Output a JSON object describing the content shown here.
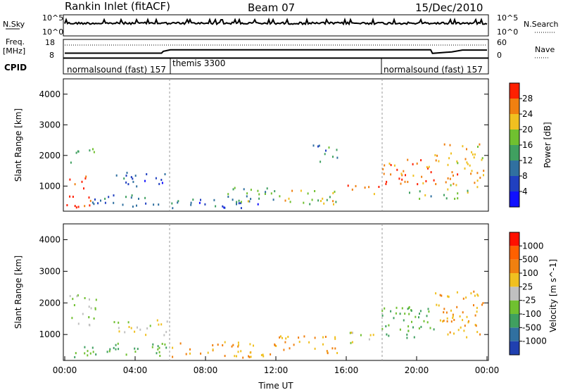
{
  "header": {
    "title": "Rankin Inlet (fitACF)",
    "beam": "Beam 07",
    "date": "15/Dec/2010"
  },
  "top_panels": {
    "nsky_label": "N.Sky",
    "nsky_ticks": [
      "10^5",
      "10^0"
    ],
    "nsearch_label": "N.Search",
    "nsearch_ticks": [
      "10^5",
      "10^0"
    ],
    "freq_label": "Freq.",
    "freq_unit": "[MHz]",
    "freq_ticks": [
      "18",
      "8"
    ],
    "nave_label": "Nave",
    "nave_ticks": [
      "60",
      "0"
    ],
    "cpid_label": "CPID",
    "cpid_segments": [
      {
        "label": "normalsound (fast) 157",
        "start_hour": 0,
        "end_hour": 6
      },
      {
        "label": "themis 3300",
        "start_hour": 6,
        "end_hour": 18
      },
      {
        "label": "normalsound (fast) 157",
        "start_hour": 18,
        "end_hour": 24
      }
    ],
    "freq_series": [
      {
        "hour": 0.0,
        "mhz": 10.5
      },
      {
        "hour": 5.5,
        "mhz": 10.5
      },
      {
        "hour": 5.6,
        "mhz": 11.5
      },
      {
        "hour": 6.0,
        "mhz": 12.3
      },
      {
        "hour": 20.8,
        "mhz": 12.3
      },
      {
        "hour": 20.9,
        "mhz": 10.4
      },
      {
        "hour": 22.0,
        "mhz": 11.2
      },
      {
        "hour": 22.6,
        "mhz": 12.2
      },
      {
        "hour": 24.0,
        "mhz": 12.2
      }
    ]
  },
  "chart_data": [
    {
      "type": "heatmap",
      "panel": "power",
      "xlabel": "",
      "ylabel": "Slant Range [km]",
      "xlim": [
        0,
        24
      ],
      "ylim": [
        180,
        4500
      ],
      "yticks": [
        "1000",
        "2000",
        "3000",
        "4000"
      ],
      "colorbar": {
        "label": "Power [dB]",
        "ticks": [
          "4",
          "8",
          "12",
          "16",
          "20",
          "24",
          "28"
        ],
        "colors": [
          "#1010ff",
          "#2040c0",
          "#3070a0",
          "#40a060",
          "#70c030",
          "#f0c020",
          "#f08010",
          "#ff2000"
        ]
      },
      "regions": [
        {
          "t0": 0.0,
          "t1": 1.5,
          "r0": 300,
          "r1": 700,
          "value": 28
        },
        {
          "t0": 0.2,
          "t1": 1.2,
          "r0": 900,
          "r1": 1400,
          "value": 26
        },
        {
          "t0": 0.3,
          "t1": 1.8,
          "r0": 1800,
          "r1": 2300,
          "value": 14
        },
        {
          "t0": 1.5,
          "t1": 6.0,
          "r0": 350,
          "r1": 800,
          "value": 10
        },
        {
          "t0": 2.5,
          "t1": 5.8,
          "r0": 1000,
          "r1": 1500,
          "value": 8
        },
        {
          "t0": 6.0,
          "t1": 12.0,
          "r0": 300,
          "r1": 600,
          "value": 8
        },
        {
          "t0": 9.0,
          "t1": 12.0,
          "r0": 500,
          "r1": 1000,
          "value": 16
        },
        {
          "t0": 12.0,
          "t1": 15.5,
          "r0": 400,
          "r1": 900,
          "value": 20
        },
        {
          "t0": 14.0,
          "t1": 15.5,
          "r0": 1800,
          "r1": 2400,
          "value": 12
        },
        {
          "t0": 16.0,
          "t1": 18.0,
          "r0": 700,
          "r1": 1100,
          "value": 28
        },
        {
          "t0": 18.0,
          "t1": 21.0,
          "r0": 1000,
          "r1": 1900,
          "value": 28
        },
        {
          "t0": 21.0,
          "t1": 23.8,
          "r0": 900,
          "r1": 2400,
          "value": 24
        },
        {
          "t0": 19.0,
          "t1": 23.0,
          "r0": 600,
          "r1": 900,
          "value": 16
        }
      ]
    },
    {
      "type": "heatmap",
      "panel": "velocity",
      "xlabel": "Time UT",
      "ylabel": "Slant Range [km]",
      "xlim": [
        0,
        24
      ],
      "ylim": [
        180,
        4500
      ],
      "xticks": [
        "00:00",
        "04:00",
        "08:00",
        "12:00",
        "16:00",
        "20:00",
        "00:00"
      ],
      "yticks": [
        "1000",
        "2000",
        "3000",
        "4000"
      ],
      "colorbar": {
        "label": "Velocity [m s^-1]",
        "ticks": [
          "1000",
          "500",
          "100",
          "25",
          "-25",
          "-100",
          "-500",
          "-1000"
        ],
        "colors": [
          "#2040b0",
          "#3070a0",
          "#40a060",
          "#70c030",
          "#c0c0c0",
          "#f0c020",
          "#f08010",
          "#ff6000",
          "#ff1000"
        ]
      },
      "regions": [
        {
          "t0": 0.0,
          "t1": 1.5,
          "r0": 300,
          "r1": 700,
          "value": 100
        },
        {
          "t0": 0.2,
          "t1": 1.8,
          "r0": 1300,
          "r1": 2300,
          "value": 25
        },
        {
          "t0": 1.5,
          "t1": 6.0,
          "r0": 350,
          "r1": 800,
          "value": 100
        },
        {
          "t0": 2.5,
          "t1": 5.8,
          "r0": 1000,
          "r1": 1500,
          "value": 0
        },
        {
          "t0": 6.0,
          "t1": 12.0,
          "r0": 300,
          "r1": 800,
          "value": -100
        },
        {
          "t0": 12.0,
          "t1": 15.5,
          "r0": 400,
          "r1": 1000,
          "value": -100
        },
        {
          "t0": 16.0,
          "t1": 18.0,
          "r0": 700,
          "r1": 1100,
          "value": 0
        },
        {
          "t0": 18.0,
          "t1": 21.0,
          "r0": 900,
          "r1": 1900,
          "value": 100
        },
        {
          "t0": 21.0,
          "t1": 23.8,
          "r0": 900,
          "r1": 2400,
          "value": -100
        }
      ]
    }
  ]
}
